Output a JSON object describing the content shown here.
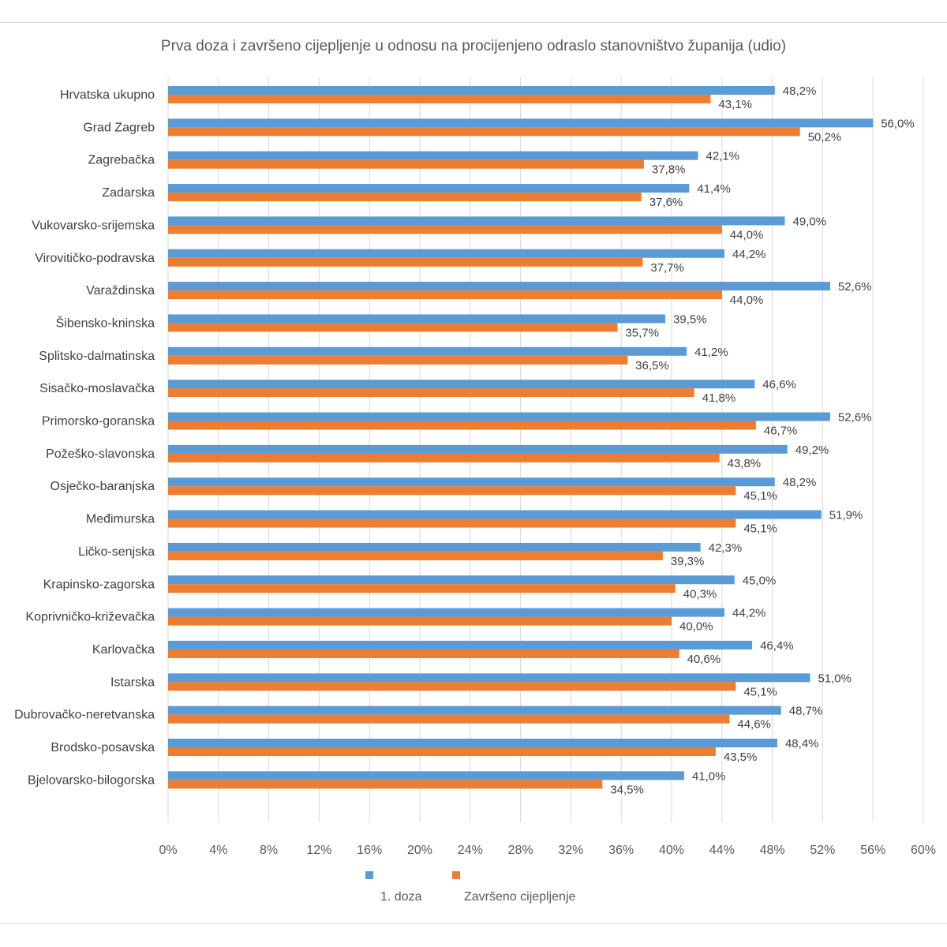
{
  "chart_data": {
    "type": "bar",
    "orientation": "horizontal",
    "title": "Prva doza i završeno cijepljenje u odnosu na procijenjeno odraslo stanovništvo županija (udio)",
    "categories": [
      "Hrvatska ukupno",
      "Grad Zagreb",
      "Zagrebačka",
      "Zadarska",
      "Vukovarsko-srijemska",
      "Virovitičko-podravska",
      "Varaždinska",
      "Šibensko-kninska",
      "Splitsko-dalmatinska",
      "Sisačko-moslavačka",
      "Primorsko-goranska",
      "Požeško-slavonska",
      "Osječko-baranjska",
      "Međimurska",
      "Ličko-senjska",
      "Krapinsko-zagorska",
      "Koprivničko-križevačka",
      "Karlovačka",
      "Istarska",
      "Dubrovačko-neretvanska",
      "Brodsko-posavska",
      "Bjelovarsko-bilogorska"
    ],
    "series": [
      {
        "name": "1. doza",
        "color": "#5b9bd5",
        "values": [
          48.2,
          56.0,
          42.1,
          41.4,
          49.0,
          44.2,
          52.6,
          39.5,
          41.2,
          46.6,
          52.6,
          49.2,
          48.2,
          51.9,
          42.3,
          45.0,
          44.2,
          46.4,
          51.0,
          48.7,
          48.4,
          41.0
        ],
        "labels": [
          "48,2%",
          "56,0%",
          "42,1%",
          "41,4%",
          "49,0%",
          "44,2%",
          "52,6%",
          "39,5%",
          "41,2%",
          "46,6%",
          "52,6%",
          "49,2%",
          "48,2%",
          "51,9%",
          "42,3%",
          "45,0%",
          "44,2%",
          "46,4%",
          "51,0%",
          "48,7%",
          "48,4%",
          "41,0%"
        ]
      },
      {
        "name": "Završeno cijepljenje",
        "color": "#ed7d31",
        "values": [
          43.1,
          50.2,
          37.8,
          37.6,
          44.0,
          37.7,
          44.0,
          35.7,
          36.5,
          41.8,
          46.7,
          43.8,
          45.1,
          45.1,
          39.3,
          40.3,
          40.0,
          40.6,
          45.1,
          44.6,
          43.5,
          34.5
        ],
        "labels": [
          "43,1%",
          "50,2%",
          "37,8%",
          "37,6%",
          "44,0%",
          "37,7%",
          "44,0%",
          "35,7%",
          "36,5%",
          "41,8%",
          "46,7%",
          "43,8%",
          "45,1%",
          "45,1%",
          "39,3%",
          "40,3%",
          "40,0%",
          "40,6%",
          "45,1%",
          "44,6%",
          "43,5%",
          "34,5%"
        ]
      }
    ],
    "xlim": [
      0,
      60
    ],
    "xticks": [
      0,
      4,
      8,
      12,
      16,
      20,
      24,
      28,
      32,
      36,
      40,
      44,
      48,
      52,
      56,
      60
    ],
    "xtick_labels": [
      "0%",
      "4%",
      "8%",
      "12%",
      "16%",
      "20%",
      "24%",
      "28%",
      "32%",
      "36%",
      "40%",
      "44%",
      "48%",
      "52%",
      "56%",
      "60%"
    ],
    "grid": "vertical",
    "legend_position": "bottom"
  }
}
